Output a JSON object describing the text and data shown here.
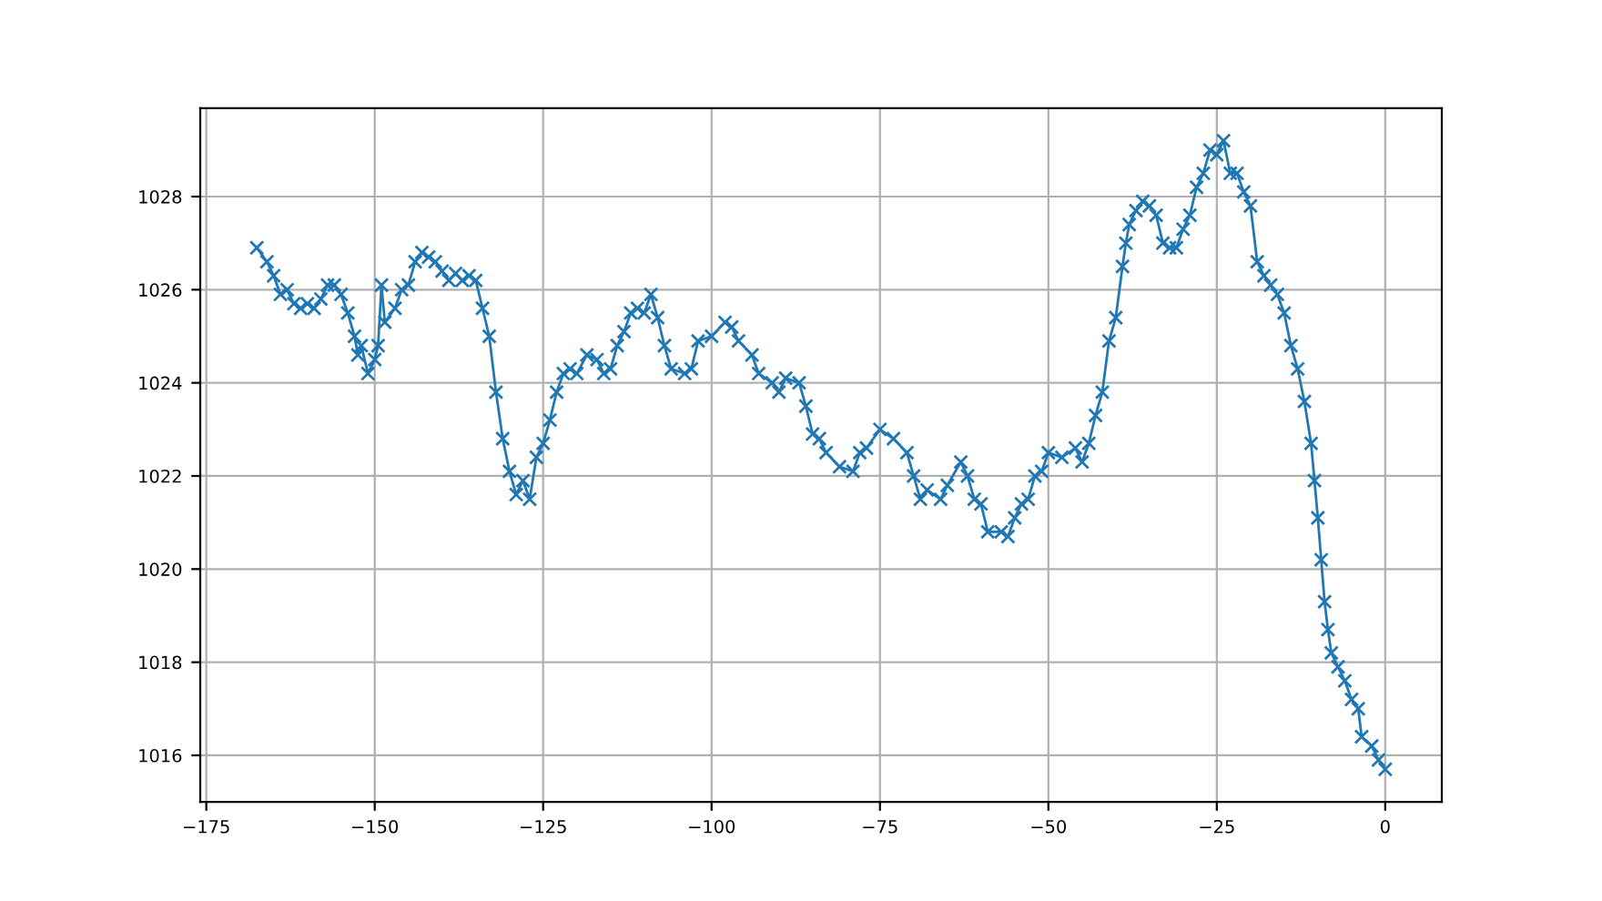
{
  "chart_data": {
    "type": "line",
    "marker": "cross",
    "line_style": "solid",
    "grid": true,
    "xlim": [
      -175.9,
      8.4
    ],
    "ylim": [
      1015.0,
      1029.9
    ],
    "xticks": [
      {
        "value": -175,
        "label": "−175"
      },
      {
        "value": -150,
        "label": "−150"
      },
      {
        "value": -125,
        "label": "−125"
      },
      {
        "value": -100,
        "label": "−100"
      },
      {
        "value": -75,
        "label": "−75"
      },
      {
        "value": -50,
        "label": "−50"
      },
      {
        "value": -25,
        "label": "−25"
      },
      0
    ],
    "yticks": [
      1016,
      1018,
      1020,
      1022,
      1024,
      1026,
      1028
    ],
    "series": [
      {
        "color": "#1f77b4",
        "x": [
          -167.5,
          -166,
          -165,
          -164,
          -163,
          -162,
          -161,
          -160,
          -159,
          -158,
          -157,
          -156,
          -155,
          -154,
          -153,
          -152.5,
          -152,
          -151,
          -150,
          -149.5,
          -149,
          -148.5,
          -147,
          -146,
          -145,
          -144,
          -143,
          -142,
          -141,
          -140,
          -139,
          -138,
          -137,
          -136,
          -135,
          -134,
          -133,
          -132,
          -131,
          -130,
          -129,
          -128,
          -127,
          -126,
          -125,
          -124,
          -123,
          -122,
          -121,
          -120,
          -118.5,
          -117,
          -116,
          -115,
          -114,
          -113,
          -112,
          -111,
          -110,
          -109,
          -108,
          -107,
          -106,
          -104,
          -103,
          -102,
          -100,
          -98,
          -97,
          -96,
          -94,
          -93,
          -91,
          -90,
          -89,
          -87,
          -86,
          -85,
          -84,
          -83,
          -81,
          -79,
          -78,
          -77,
          -75,
          -73,
          -71,
          -70,
          -69,
          -68,
          -66,
          -65,
          -63,
          -62,
          -61,
          -60,
          -59,
          -57,
          -56,
          -55,
          -54,
          -53,
          -52,
          -51,
          -50,
          -48,
          -46,
          -45,
          -44,
          -43,
          -42,
          -41,
          -40,
          -39,
          -38.5,
          -38,
          -37,
          -36,
          -35,
          -34,
          -33,
          -32,
          -31,
          -30,
          -29,
          -28,
          -27,
          -26,
          -25,
          -24,
          -23,
          -22,
          -21,
          -20,
          -19,
          -18,
          -17,
          -16,
          -15,
          -14,
          -13,
          -12,
          -11,
          -10.5,
          -10,
          -9.5,
          -9,
          -8.5,
          -8,
          -7,
          -6,
          -5,
          -4,
          -3.5,
          -2,
          -1,
          0
        ],
        "values": [
          1026.9,
          1026.6,
          1026.3,
          1025.9,
          1026.0,
          1025.7,
          1025.6,
          1025.7,
          1025.6,
          1025.8,
          1026.1,
          1026.1,
          1025.9,
          1025.5,
          1025.0,
          1024.6,
          1024.8,
          1024.2,
          1024.5,
          1024.8,
          1026.1,
          1025.3,
          1025.6,
          1026.0,
          1026.1,
          1026.6,
          1026.8,
          1026.7,
          1026.6,
          1026.4,
          1026.2,
          1026.35,
          1026.2,
          1026.3,
          1026.2,
          1025.6,
          1025.0,
          1023.8,
          1022.8,
          1022.1,
          1021.6,
          1021.9,
          1021.5,
          1022.4,
          1022.7,
          1023.2,
          1023.8,
          1024.2,
          1024.3,
          1024.2,
          1024.6,
          1024.5,
          1024.2,
          1024.3,
          1024.8,
          1025.1,
          1025.5,
          1025.6,
          1025.5,
          1025.9,
          1025.4,
          1024.8,
          1024.3,
          1024.2,
          1024.3,
          1024.9,
          1025.0,
          1025.3,
          1025.2,
          1024.9,
          1024.6,
          1024.2,
          1024.0,
          1023.8,
          1024.1,
          1024.0,
          1023.5,
          1022.9,
          1022.8,
          1022.5,
          1022.2,
          1022.1,
          1022.5,
          1022.6,
          1023.0,
          1022.8,
          1022.5,
          1022.0,
          1021.5,
          1021.7,
          1021.5,
          1021.8,
          1022.3,
          1022.0,
          1021.5,
          1021.4,
          1020.8,
          1020.8,
          1020.7,
          1021.1,
          1021.4,
          1021.5,
          1022.0,
          1022.1,
          1022.5,
          1022.4,
          1022.6,
          1022.3,
          1022.7,
          1023.3,
          1023.8,
          1024.9,
          1025.4,
          1026.5,
          1027.0,
          1027.4,
          1027.7,
          1027.9,
          1027.8,
          1027.6,
          1027.0,
          1026.9,
          1026.9,
          1027.3,
          1027.6,
          1028.2,
          1028.5,
          1029.0,
          1028.9,
          1029.2,
          1028.5,
          1028.5,
          1028.1,
          1027.8,
          1026.6,
          1026.3,
          1026.1,
          1025.9,
          1025.5,
          1024.8,
          1024.3,
          1023.6,
          1022.7,
          1021.9,
          1021.1,
          1020.2,
          1019.3,
          1018.7,
          1018.2,
          1017.9,
          1017.6,
          1017.2,
          1017.0,
          1016.4,
          1016.2,
          1015.9,
          1015.7
        ]
      }
    ]
  }
}
